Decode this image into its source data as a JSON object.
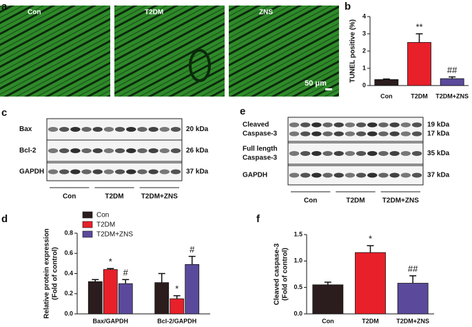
{
  "image_panel": {
    "label": "a",
    "captions": [
      "Con",
      "T2DM",
      "ZNS"
    ],
    "scale_bar": "50 μm"
  },
  "blot_c": {
    "label": "c",
    "rows": [
      [
        "Bax"
      ],
      [
        "Bcl-2"
      ],
      [
        "GAPDH"
      ]
    ],
    "sizes": [
      [
        "20 kDa"
      ],
      [
        "26 kDa"
      ],
      [
        "37 kDa"
      ]
    ],
    "groups": [
      "Con",
      "T2DM",
      "T2DM+ZNS"
    ]
  },
  "blot_e": {
    "label": "e",
    "rows": [
      [
        "Cleaved",
        "Caspase-3"
      ],
      [
        "Full length",
        "Caspase-3"
      ],
      [
        "GAPDH"
      ]
    ],
    "sizes": [
      [
        "19 kDa",
        "17 kDa"
      ],
      [
        "35 kDa"
      ],
      [
        "37 kDa"
      ]
    ],
    "groups": [
      "Con",
      "T2DM",
      "T2DM+ZNS"
    ]
  },
  "chart_data": [
    {
      "type": "bar",
      "panel_label": "b",
      "y_label": [
        "TUNEL positive (%)"
      ],
      "categories": [
        "Con",
        "T2DM",
        "T2DM+ZNS"
      ],
      "values": [
        0.35,
        2.5,
        0.4
      ],
      "errors": [
        0.03,
        0.5,
        0.1
      ],
      "colors": [
        "#2b1d1d",
        "#e8202a",
        "#5b4a9b"
      ],
      "annotations": [
        null,
        "**",
        "##"
      ],
      "ylim": [
        0,
        4
      ],
      "yticks": [
        0,
        1,
        2,
        3,
        4
      ]
    },
    {
      "type": "grouped-bar",
      "panel_label": "d",
      "y_label": [
        "Relative protein expression",
        "(Fold of control)"
      ],
      "categories": [
        "Bax/GAPDH",
        "Bcl-2/GAPDH"
      ],
      "series": [
        {
          "name": "Con",
          "color": "#2b1d1d",
          "values": [
            0.32,
            0.31
          ],
          "errors": [
            0.02,
            0.09
          ],
          "annotations": [
            null,
            null
          ]
        },
        {
          "name": "T2DM",
          "color": "#e8202a",
          "values": [
            0.44,
            0.15
          ],
          "errors": [
            0.01,
            0.03
          ],
          "annotations": [
            "*",
            "*"
          ]
        },
        {
          "name": "T2DM+ZNS",
          "color": "#5b4a9b",
          "values": [
            0.3,
            0.49
          ],
          "errors": [
            0.04,
            0.08
          ],
          "annotations": [
            "#",
            "#"
          ]
        }
      ],
      "ylim": [
        0,
        0.8
      ],
      "yticks": [
        {
          "value": 0,
          "label": "0.0"
        },
        0.2,
        0.4,
        0.6,
        0.8
      ]
    },
    {
      "type": "bar",
      "panel_label": "f",
      "y_label": [
        "Cleaved caspase-3",
        "(Fold of control)"
      ],
      "categories": [
        "Con",
        "T2DM",
        "T2DM+ZNS"
      ],
      "values": [
        0.55,
        1.16,
        0.58
      ],
      "errors": [
        0.05,
        0.13,
        0.14
      ],
      "colors": [
        "#2b1d1d",
        "#e8202a",
        "#5b4a9b"
      ],
      "annotations": [
        null,
        "*",
        "##"
      ],
      "ylim": [
        0,
        1.5
      ],
      "yticks": [
        {
          "value": 0,
          "label": "0.0"
        },
        0.5,
        {
          "value": 1,
          "label": "1.0"
        },
        1.5
      ]
    }
  ]
}
